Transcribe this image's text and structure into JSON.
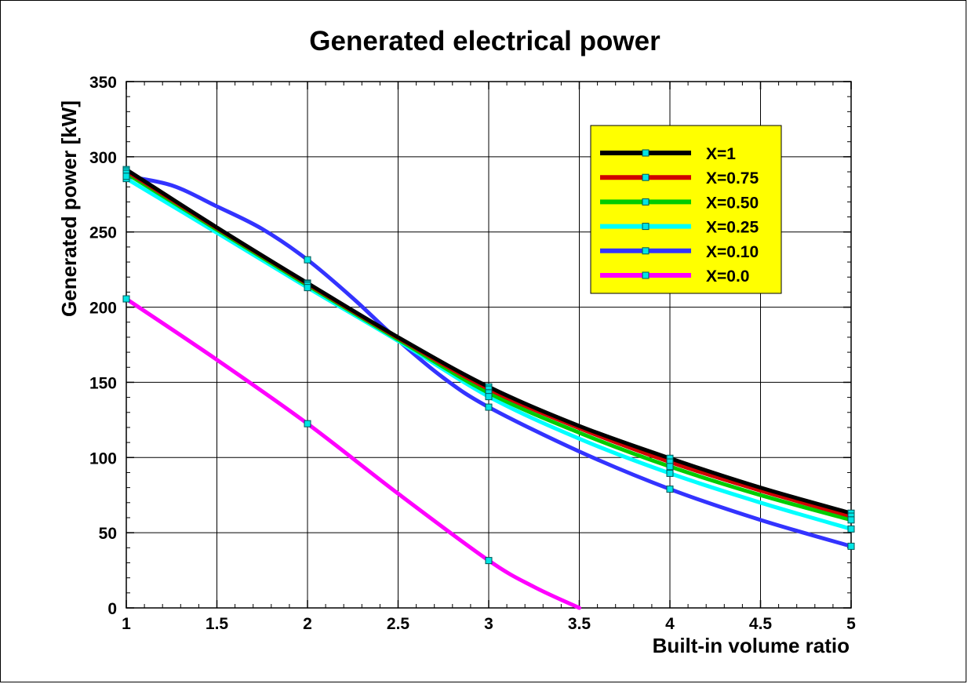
{
  "chart_data": {
    "type": "line",
    "title": "Generated electrical power",
    "xlabel": "Built-in volume ratio",
    "ylabel": "Generated power [kW]",
    "xlim": [
      1,
      5
    ],
    "ylim": [
      0,
      350
    ],
    "xticks": [
      "1",
      "1.5",
      "2",
      "2.5",
      "3",
      "3.5",
      "4",
      "4.5",
      "5"
    ],
    "yticks": [
      "0",
      "50",
      "100",
      "150",
      "200",
      "250",
      "300",
      "350"
    ],
    "grid": true,
    "legend_position": "top-right",
    "colors": {
      "background": "#ffffff",
      "legend_background": "#ffff00",
      "marker_fill": "#00e5e5"
    },
    "series": [
      {
        "name": "X=1",
        "color": "#000000",
        "markers": [
          [
            1,
            291.5
          ],
          [
            2,
            216
          ],
          [
            3,
            147
          ],
          [
            4,
            99.5
          ],
          [
            5,
            63
          ]
        ],
        "curve": [
          [
            1,
            291.5
          ],
          [
            1.5,
            253
          ],
          [
            2,
            216
          ],
          [
            2.5,
            180
          ],
          [
            3,
            147
          ],
          [
            3.5,
            121
          ],
          [
            4,
            99.5
          ],
          [
            4.5,
            80
          ],
          [
            5,
            63
          ]
        ]
      },
      {
        "name": "X=0.75",
        "color": "#d00000",
        "markers": [
          [
            1,
            290.5
          ],
          [
            2,
            215.5
          ],
          [
            3,
            145.5
          ],
          [
            4,
            97
          ],
          [
            5,
            61
          ]
        ],
        "curve": [
          [
            1,
            290.5
          ],
          [
            1.5,
            252.5
          ],
          [
            2,
            215.5
          ],
          [
            2.5,
            179.5
          ],
          [
            3,
            145.5
          ],
          [
            3.5,
            119.5
          ],
          [
            4,
            97
          ],
          [
            4.5,
            78
          ],
          [
            5,
            61
          ]
        ]
      },
      {
        "name": "X=0.50",
        "color": "#00cc00",
        "markers": [
          [
            1,
            289
          ],
          [
            2,
            214.5
          ],
          [
            3,
            143
          ],
          [
            4,
            94
          ],
          [
            5,
            58.5
          ]
        ],
        "curve": [
          [
            1,
            289
          ],
          [
            1.5,
            251.5
          ],
          [
            2,
            214.5
          ],
          [
            2.5,
            178.5
          ],
          [
            3,
            143
          ],
          [
            3.5,
            116.5
          ],
          [
            4,
            94
          ],
          [
            4.5,
            75
          ],
          [
            5,
            58.5
          ]
        ]
      },
      {
        "name": "X=0.25",
        "color": "#00ffff",
        "markers": [
          [
            1,
            285.5
          ],
          [
            2,
            213
          ],
          [
            3,
            140.5
          ],
          [
            4,
            89.5
          ],
          [
            5,
            52.5
          ]
        ],
        "curve": [
          [
            1,
            285.5
          ],
          [
            1.5,
            249.5
          ],
          [
            2,
            213
          ],
          [
            2.5,
            177.5
          ],
          [
            3,
            140.5
          ],
          [
            3.5,
            112.5
          ],
          [
            4,
            89.5
          ],
          [
            4.5,
            70
          ],
          [
            5,
            52.5
          ]
        ]
      },
      {
        "name": "X=0.10",
        "color": "#3333ff",
        "markers": [
          [
            1,
            287
          ],
          [
            2,
            231.5
          ],
          [
            3,
            133.5
          ],
          [
            4,
            79
          ],
          [
            5,
            41
          ]
        ],
        "curve": [
          [
            1,
            287
          ],
          [
            1.25,
            281
          ],
          [
            1.5,
            267
          ],
          [
            1.75,
            252
          ],
          [
            2,
            231.5
          ],
          [
            2.25,
            206
          ],
          [
            2.5,
            178
          ],
          [
            2.75,
            153
          ],
          [
            3,
            133.5
          ],
          [
            3.5,
            104
          ],
          [
            4,
            79
          ],
          [
            4.5,
            58.5
          ],
          [
            5,
            41
          ]
        ]
      },
      {
        "name": "X=0.0",
        "color": "#ff00ff",
        "markers": [
          [
            1,
            205.5
          ],
          [
            2,
            122.5
          ],
          [
            3,
            31.5
          ]
        ],
        "curve": [
          [
            1,
            205.5
          ],
          [
            1.5,
            165
          ],
          [
            2,
            122.5
          ],
          [
            2.5,
            76
          ],
          [
            3,
            31.5
          ],
          [
            3.25,
            14
          ],
          [
            3.5,
            0
          ]
        ]
      }
    ]
  }
}
